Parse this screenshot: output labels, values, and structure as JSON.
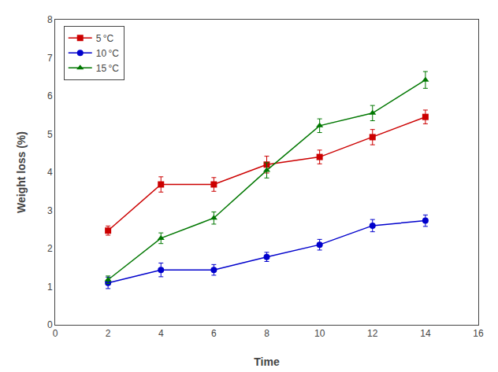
{
  "chart_data": {
    "type": "line",
    "xlabel": "Time",
    "ylabel": "Weight loss (%)",
    "x": [
      2,
      4,
      6,
      8,
      10,
      12,
      14
    ],
    "series": [
      {
        "name": "5 °C",
        "color": "#cc0000",
        "marker": "square",
        "values": [
          2.47,
          3.68,
          3.68,
          4.2,
          4.4,
          4.92,
          5.45
        ],
        "yerr": [
          0.12,
          0.2,
          0.18,
          0.22,
          0.18,
          0.2,
          0.18
        ]
      },
      {
        "name": "10 °C",
        "color": "#0000cc",
        "marker": "circle",
        "values": [
          1.1,
          1.44,
          1.44,
          1.78,
          2.1,
          2.6,
          2.73
        ],
        "yerr": [
          0.15,
          0.18,
          0.14,
          0.12,
          0.14,
          0.16,
          0.15
        ]
      },
      {
        "name": "15 °C",
        "color": "#007700",
        "marker": "triangle-up",
        "values": [
          1.18,
          2.27,
          2.8,
          4.05,
          5.22,
          5.55,
          6.42
        ],
        "yerr": [
          0.1,
          0.14,
          0.16,
          0.2,
          0.18,
          0.2,
          0.22
        ]
      }
    ],
    "xlim": [
      0,
      16
    ],
    "ylim": [
      0,
      8
    ],
    "xticks": [
      0,
      2,
      4,
      6,
      8,
      10,
      12,
      14,
      16
    ],
    "yticks": [
      0,
      1,
      2,
      3,
      4,
      5,
      6,
      7,
      8
    ],
    "legend": "upper left",
    "grid": false
  }
}
